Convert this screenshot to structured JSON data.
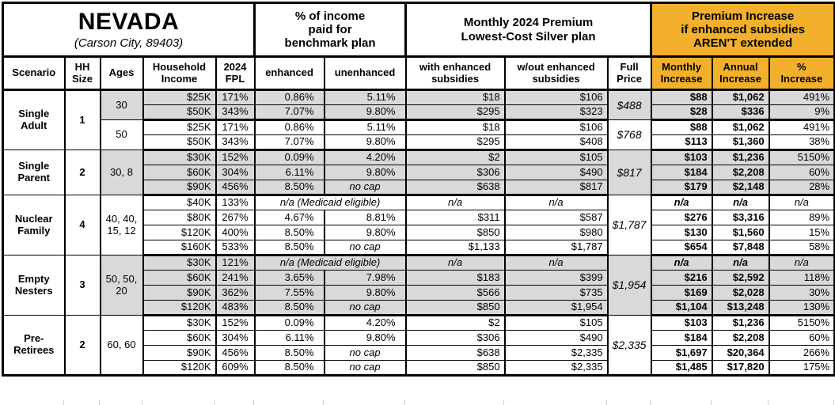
{
  "title": {
    "state": "NEVADA",
    "location": "(Carson City, 89403)"
  },
  "headers": {
    "pct_income_group": "% of income\npaid for\nbenchmark plan",
    "premium_group": "Monthly 2024 Premium\nLowest-Cost Silver plan",
    "increase_group": "Premium Increase\nif enhanced subsidies\nAREN'T extended",
    "columns": {
      "scenario": "Scenario",
      "hh_size": "HH\nSize",
      "ages": "Ages",
      "income": "Household\nIncome",
      "fpl": "2024\nFPL",
      "enhanced": "enhanced",
      "unenhanced": "unenhanced",
      "with_sub": "with enhanced\nsubsidies",
      "wout_sub": "w/out enhanced\nsubsidies",
      "full_price": "Full\nPrice",
      "monthly": "Monthly\nIncrease",
      "annual": "Annual\nIncrease",
      "pct": "%\nIncrease"
    }
  },
  "colors": {
    "accent": "#F2B02C",
    "shade": "#D9D9D9"
  },
  "groups": [
    {
      "scenario": "Single\nAdult",
      "hh_size": "1",
      "blocks": [
        {
          "ages": "30",
          "shaded": true,
          "full_price": "$488",
          "rows": [
            {
              "income": "$25K",
              "fpl": "171%",
              "enhanced": "0.86%",
              "unenhanced": "5.11%",
              "with_sub": "$18",
              "wout_sub": "$106",
              "monthly": "$88",
              "annual": "$1,062",
              "pct": "491%"
            },
            {
              "income": "$50K",
              "fpl": "343%",
              "enhanced": "7.07%",
              "unenhanced": "9.80%",
              "with_sub": "$295",
              "wout_sub": "$323",
              "monthly": "$28",
              "annual": "$336",
              "pct": "9%"
            }
          ]
        },
        {
          "ages": "50",
          "shaded": false,
          "full_price": "$768",
          "rows": [
            {
              "income": "$25K",
              "fpl": "171%",
              "enhanced": "0.86%",
              "unenhanced": "5.11%",
              "with_sub": "$18",
              "wout_sub": "$106",
              "monthly": "$88",
              "annual": "$1,062",
              "pct": "491%"
            },
            {
              "income": "$50K",
              "fpl": "343%",
              "enhanced": "7.07%",
              "unenhanced": "9.80%",
              "with_sub": "$295",
              "wout_sub": "$408",
              "monthly": "$113",
              "annual": "$1,360",
              "pct": "38%"
            }
          ]
        }
      ]
    },
    {
      "scenario": "Single\nParent",
      "hh_size": "2",
      "blocks": [
        {
          "ages": "30, 8",
          "shaded": true,
          "full_price": "$817",
          "rows": [
            {
              "income": "$30K",
              "fpl": "152%",
              "enhanced": "0.09%",
              "unenhanced": "4.20%",
              "with_sub": "$2",
              "wout_sub": "$105",
              "monthly": "$103",
              "annual": "$1,236",
              "pct": "5150%"
            },
            {
              "income": "$60K",
              "fpl": "304%",
              "enhanced": "6.11%",
              "unenhanced": "9.80%",
              "with_sub": "$306",
              "wout_sub": "$490",
              "monthly": "$184",
              "annual": "$2,208",
              "pct": "60%"
            },
            {
              "income": "$90K",
              "fpl": "456%",
              "enhanced": "8.50%",
              "unenhanced": "no cap",
              "with_sub": "$638",
              "wout_sub": "$817",
              "monthly": "$179",
              "annual": "$2,148",
              "pct": "28%"
            }
          ]
        }
      ]
    },
    {
      "scenario": "Nuclear\nFamily",
      "hh_size": "4",
      "blocks": [
        {
          "ages": "40, 40,\n15, 12",
          "shaded": false,
          "full_price": "$1,787",
          "rows": [
            {
              "income": "$40K",
              "fpl": "133%",
              "medicaid": "n/a (Medicaid eligible)",
              "with_sub": "n/a",
              "wout_sub": "n/a",
              "monthly": "n/a",
              "annual": "n/a",
              "pct": "n/a"
            },
            {
              "income": "$80K",
              "fpl": "267%",
              "enhanced": "4.67%",
              "unenhanced": "8.81%",
              "with_sub": "$311",
              "wout_sub": "$587",
              "monthly": "$276",
              "annual": "$3,316",
              "pct": "89%"
            },
            {
              "income": "$120K",
              "fpl": "400%",
              "enhanced": "8.50%",
              "unenhanced": "9.80%",
              "with_sub": "$850",
              "wout_sub": "$980",
              "monthly": "$130",
              "annual": "$1,560",
              "pct": "15%"
            },
            {
              "income": "$160K",
              "fpl": "533%",
              "enhanced": "8.50%",
              "unenhanced": "no cap",
              "with_sub": "$1,133",
              "wout_sub": "$1,787",
              "monthly": "$654",
              "annual": "$7,848",
              "pct": "58%"
            }
          ]
        }
      ]
    },
    {
      "scenario": "Empty\nNesters",
      "hh_size": "3",
      "blocks": [
        {
          "ages": "50, 50,\n20",
          "shaded": true,
          "full_price": "$1,954",
          "rows": [
            {
              "income": "$30K",
              "fpl": "121%",
              "medicaid": "n/a (Medicaid eligible)",
              "with_sub": "n/a",
              "wout_sub": "n/a",
              "monthly": "n/a",
              "annual": "n/a",
              "pct": "n/a"
            },
            {
              "income": "$60K",
              "fpl": "241%",
              "enhanced": "3.65%",
              "unenhanced": "7.98%",
              "with_sub": "$183",
              "wout_sub": "$399",
              "monthly": "$216",
              "annual": "$2,592",
              "pct": "118%"
            },
            {
              "income": "$90K",
              "fpl": "362%",
              "enhanced": "7.55%",
              "unenhanced": "9.80%",
              "with_sub": "$566",
              "wout_sub": "$735",
              "monthly": "$169",
              "annual": "$2,028",
              "pct": "30%"
            },
            {
              "income": "$120K",
              "fpl": "483%",
              "enhanced": "8.50%",
              "unenhanced": "no cap",
              "with_sub": "$850",
              "wout_sub": "$1,954",
              "monthly": "$1,104",
              "annual": "$13,248",
              "pct": "130%"
            }
          ]
        }
      ]
    },
    {
      "scenario": "Pre-\nRetirees",
      "hh_size": "2",
      "blocks": [
        {
          "ages": "60, 60",
          "shaded": false,
          "full_price": "$2,335",
          "rows": [
            {
              "income": "$30K",
              "fpl": "152%",
              "enhanced": "0.09%",
              "unenhanced": "4.20%",
              "with_sub": "$2",
              "wout_sub": "$105",
              "monthly": "$103",
              "annual": "$1,236",
              "pct": "5150%"
            },
            {
              "income": "$60K",
              "fpl": "304%",
              "enhanced": "6.11%",
              "unenhanced": "9.80%",
              "with_sub": "$306",
              "wout_sub": "$490",
              "monthly": "$184",
              "annual": "$2,208",
              "pct": "60%"
            },
            {
              "income": "$90K",
              "fpl": "456%",
              "enhanced": "8.50%",
              "unenhanced": "no cap",
              "with_sub": "$638",
              "wout_sub": "$2,335",
              "monthly": "$1,697",
              "annual": "$20,364",
              "pct": "266%"
            },
            {
              "income": "$120K",
              "fpl": "609%",
              "enhanced": "8.50%",
              "unenhanced": "no cap",
              "with_sub": "$850",
              "wout_sub": "$2,335",
              "monthly": "$1,485",
              "annual": "$17,820",
              "pct": "175%"
            }
          ]
        }
      ]
    }
  ]
}
